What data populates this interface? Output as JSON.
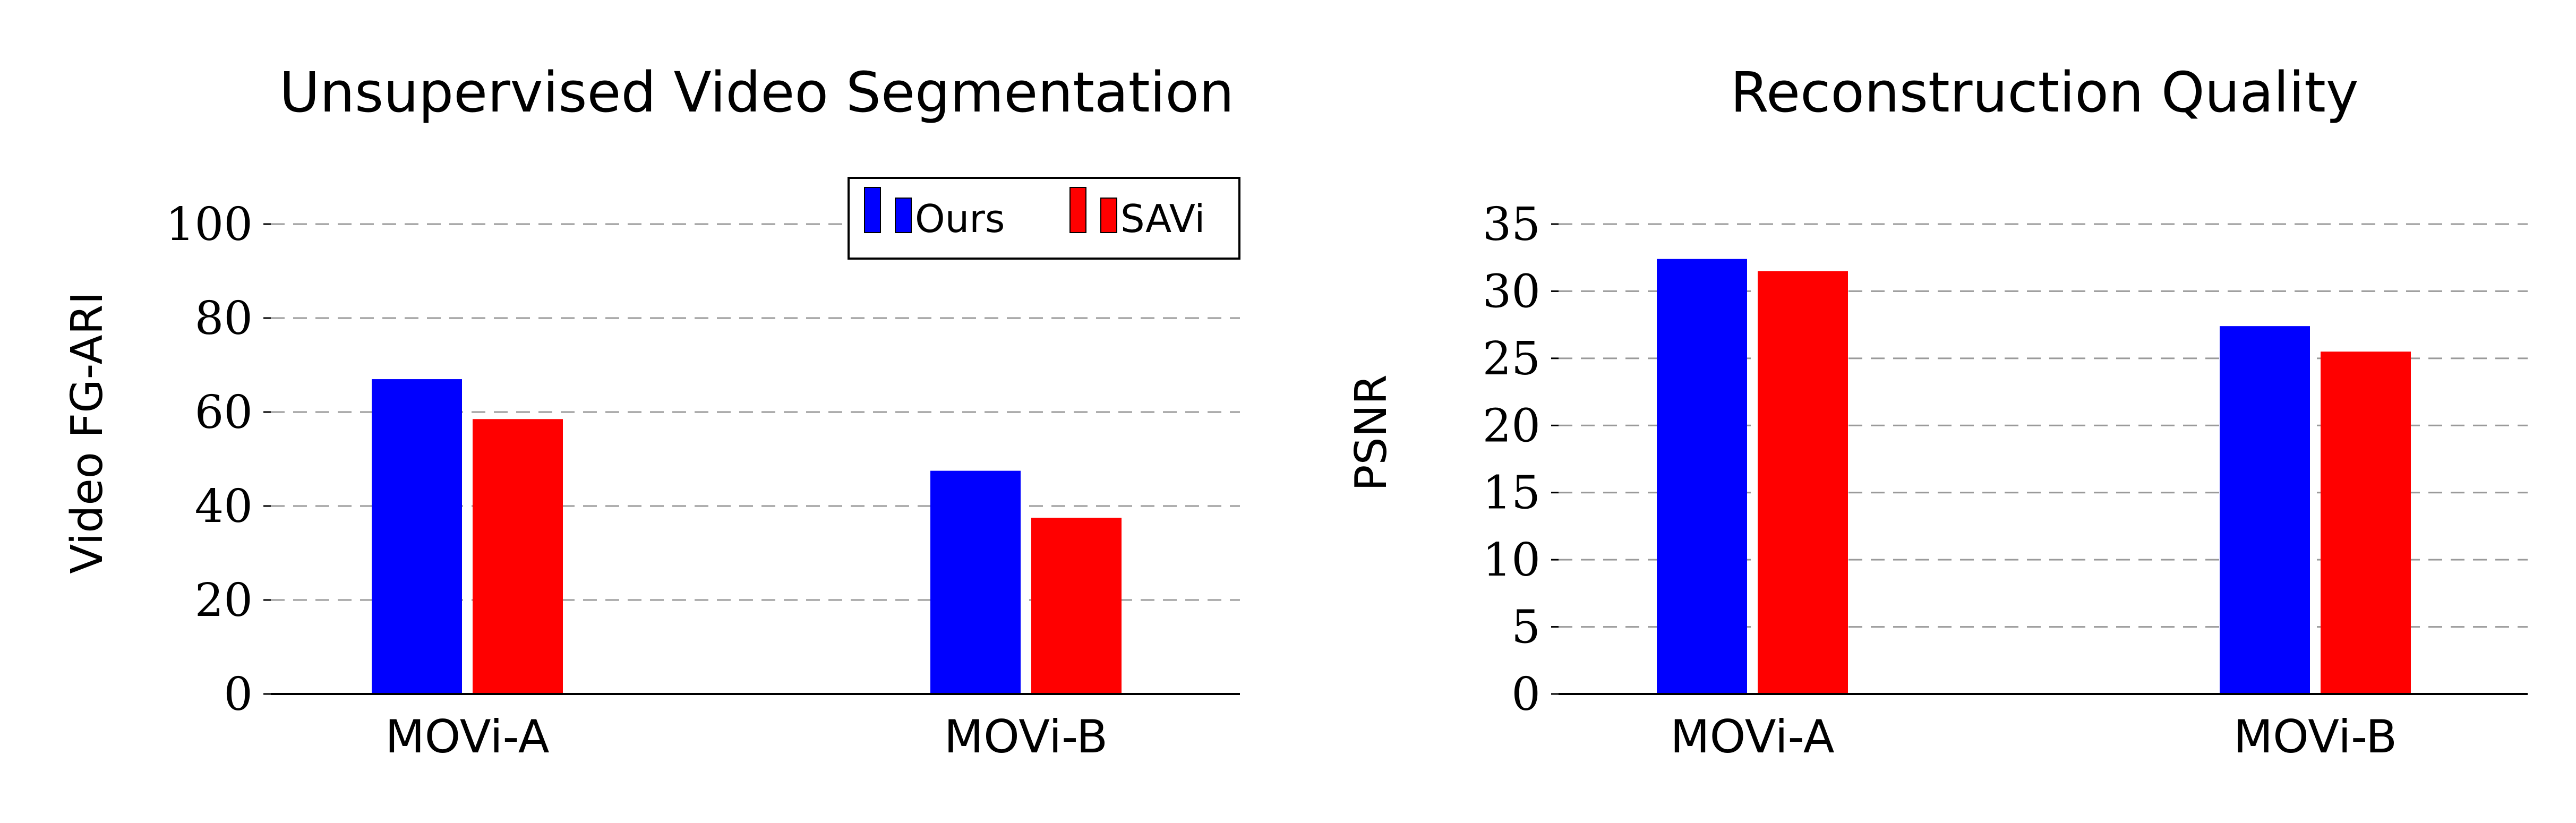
{
  "chart_data": [
    {
      "type": "bar",
      "title": "Unsupervised Video Segmentation",
      "xlabel": "",
      "ylabel": "Video FG-ARI",
      "categories": [
        "MOVi-A",
        "MOVi-B"
      ],
      "series": [
        {
          "name": "Ours",
          "color": "#0000ff",
          "values": [
            67,
            47.5
          ]
        },
        {
          "name": "SAVi",
          "color": "#ff0000",
          "values": [
            58.5,
            37.5
          ]
        }
      ],
      "ylim": [
        0,
        100
      ],
      "yticks": [
        0,
        20,
        40,
        60,
        80,
        100
      ],
      "grid": true,
      "legend": "top-right"
    },
    {
      "type": "bar",
      "title": "Reconstruction Quality",
      "xlabel": "",
      "ylabel": "PSNR",
      "categories": [
        "MOVi-A",
        "MOVi-B"
      ],
      "series": [
        {
          "color": "#0000ff",
          "values": [
            32.4,
            27.4
          ]
        },
        {
          "color": "#ff0000",
          "values": [
            31.5,
            25.5
          ]
        }
      ],
      "ylim": [
        0,
        35
      ],
      "yticks": [
        0,
        5,
        10,
        15,
        20,
        25,
        30,
        35
      ],
      "grid": true,
      "legend": "none"
    }
  ]
}
